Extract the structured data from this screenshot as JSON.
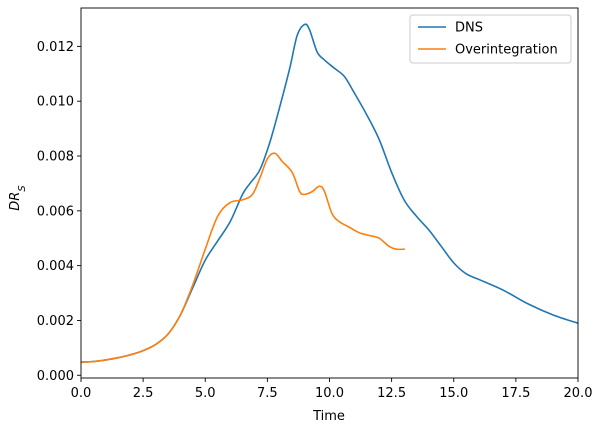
{
  "chart_data": {
    "type": "line",
    "xlabel": "Time",
    "ylabel": "DR_S",
    "xlim": [
      0,
      20
    ],
    "ylim": [
      -0.0001,
      0.0134
    ],
    "x_ticks": [
      0.0,
      2.5,
      5.0,
      7.5,
      10.0,
      12.5,
      15.0,
      17.5,
      20.0
    ],
    "x_tick_labels": [
      "0.0",
      "2.5",
      "5.0",
      "7.5",
      "10.0",
      "12.5",
      "15.0",
      "17.5",
      "20.0"
    ],
    "y_ticks": [
      0.0,
      0.002,
      0.004,
      0.006,
      0.008,
      0.01,
      0.012
    ],
    "y_tick_labels": [
      "0.000",
      "0.002",
      "0.004",
      "0.006",
      "0.008",
      "0.010",
      "0.012"
    ],
    "grid": false,
    "legend_position": "top-right",
    "series": [
      {
        "name": "DNS",
        "color": "#1f77b4",
        "x": [
          0,
          0.5,
          1.0,
          1.5,
          2.0,
          2.5,
          3.0,
          3.5,
          4.0,
          4.5,
          5.0,
          5.5,
          6.0,
          6.5,
          6.8,
          7.2,
          7.6,
          8.0,
          8.4,
          8.7,
          9.0,
          9.2,
          9.5,
          9.8,
          10.2,
          10.6,
          11.0,
          11.5,
          12.0,
          12.5,
          13.0,
          13.5,
          14.0,
          14.5,
          15.0,
          15.5,
          16.0,
          17.0,
          18.0,
          19.0,
          20.0
        ],
        "y": [
          0.00048,
          0.0005,
          0.00056,
          0.00064,
          0.00075,
          0.0009,
          0.00112,
          0.0015,
          0.0022,
          0.0032,
          0.0042,
          0.0049,
          0.0056,
          0.0066,
          0.007,
          0.0075,
          0.0085,
          0.0098,
          0.0112,
          0.0124,
          0.0128,
          0.0126,
          0.0118,
          0.0115,
          0.0112,
          0.0109,
          0.0103,
          0.0095,
          0.0086,
          0.0074,
          0.0064,
          0.0058,
          0.0053,
          0.0047,
          0.0041,
          0.0037,
          0.0035,
          0.0031,
          0.0026,
          0.0022,
          0.0019
        ]
      },
      {
        "name": "Overintegration",
        "color": "#ff7f0e",
        "x": [
          0,
          0.5,
          1.0,
          1.5,
          2.0,
          2.5,
          3.0,
          3.5,
          4.0,
          4.5,
          5.0,
          5.5,
          6.0,
          6.5,
          6.9,
          7.2,
          7.5,
          7.8,
          8.1,
          8.5,
          8.8,
          9.0,
          9.3,
          9.6,
          9.8,
          10.1,
          10.4,
          10.8,
          11.2,
          11.6,
          12.0,
          12.4,
          12.7,
          13.0
        ],
        "y": [
          0.00048,
          0.0005,
          0.00056,
          0.00064,
          0.00075,
          0.0009,
          0.00112,
          0.0015,
          0.0022,
          0.0033,
          0.0046,
          0.0058,
          0.0063,
          0.0064,
          0.0066,
          0.0072,
          0.0079,
          0.0081,
          0.0078,
          0.0074,
          0.0067,
          0.0066,
          0.0067,
          0.0069,
          0.0067,
          0.0059,
          0.0056,
          0.0054,
          0.0052,
          0.0051,
          0.005,
          0.0047,
          0.0046,
          0.0046
        ]
      }
    ]
  }
}
